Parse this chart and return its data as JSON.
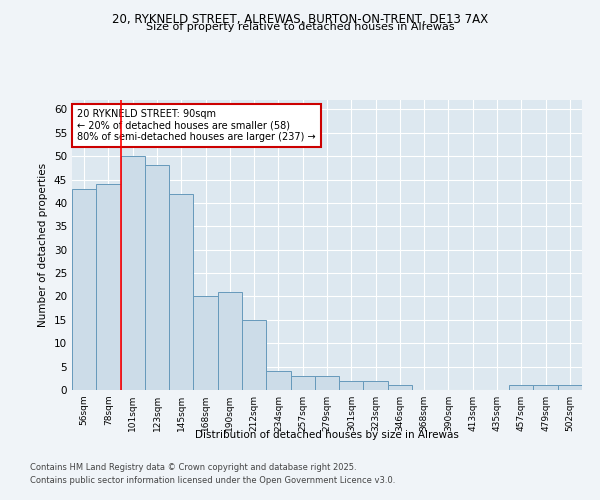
{
  "title1": "20, RYKNELD STREET, ALREWAS, BURTON-ON-TRENT, DE13 7AX",
  "title2": "Size of property relative to detached houses in Alrewas",
  "xlabel": "Distribution of detached houses by size in Alrewas",
  "ylabel": "Number of detached properties",
  "bar_labels": [
    "56sqm",
    "78sqm",
    "101sqm",
    "123sqm",
    "145sqm",
    "168sqm",
    "190sqm",
    "212sqm",
    "234sqm",
    "257sqm",
    "279sqm",
    "301sqm",
    "323sqm",
    "346sqm",
    "368sqm",
    "390sqm",
    "413sqm",
    "435sqm",
    "457sqm",
    "479sqm",
    "502sqm"
  ],
  "bar_values": [
    43,
    44,
    50,
    48,
    42,
    20,
    21,
    15,
    4,
    3,
    3,
    2,
    2,
    1,
    0,
    0,
    0,
    0,
    1,
    1,
    1
  ],
  "bar_color": "#ccdce8",
  "bar_edgecolor": "#6699bb",
  "red_line_x": 1.5,
  "annotation_text": "20 RYKNELD STREET: 90sqm\n← 20% of detached houses are smaller (58)\n80% of semi-detached houses are larger (237) →",
  "annotation_box_facecolor": "#ffffff",
  "annotation_box_edgecolor": "#cc0000",
  "ylim": [
    0,
    62
  ],
  "yticks": [
    0,
    5,
    10,
    15,
    20,
    25,
    30,
    35,
    40,
    45,
    50,
    55,
    60
  ],
  "fig_facecolor": "#f0f4f8",
  "ax_facecolor": "#dde8f0",
  "grid_color": "#ffffff",
  "footer1": "Contains HM Land Registry data © Crown copyright and database right 2025.",
  "footer2": "Contains public sector information licensed under the Open Government Licence v3.0."
}
